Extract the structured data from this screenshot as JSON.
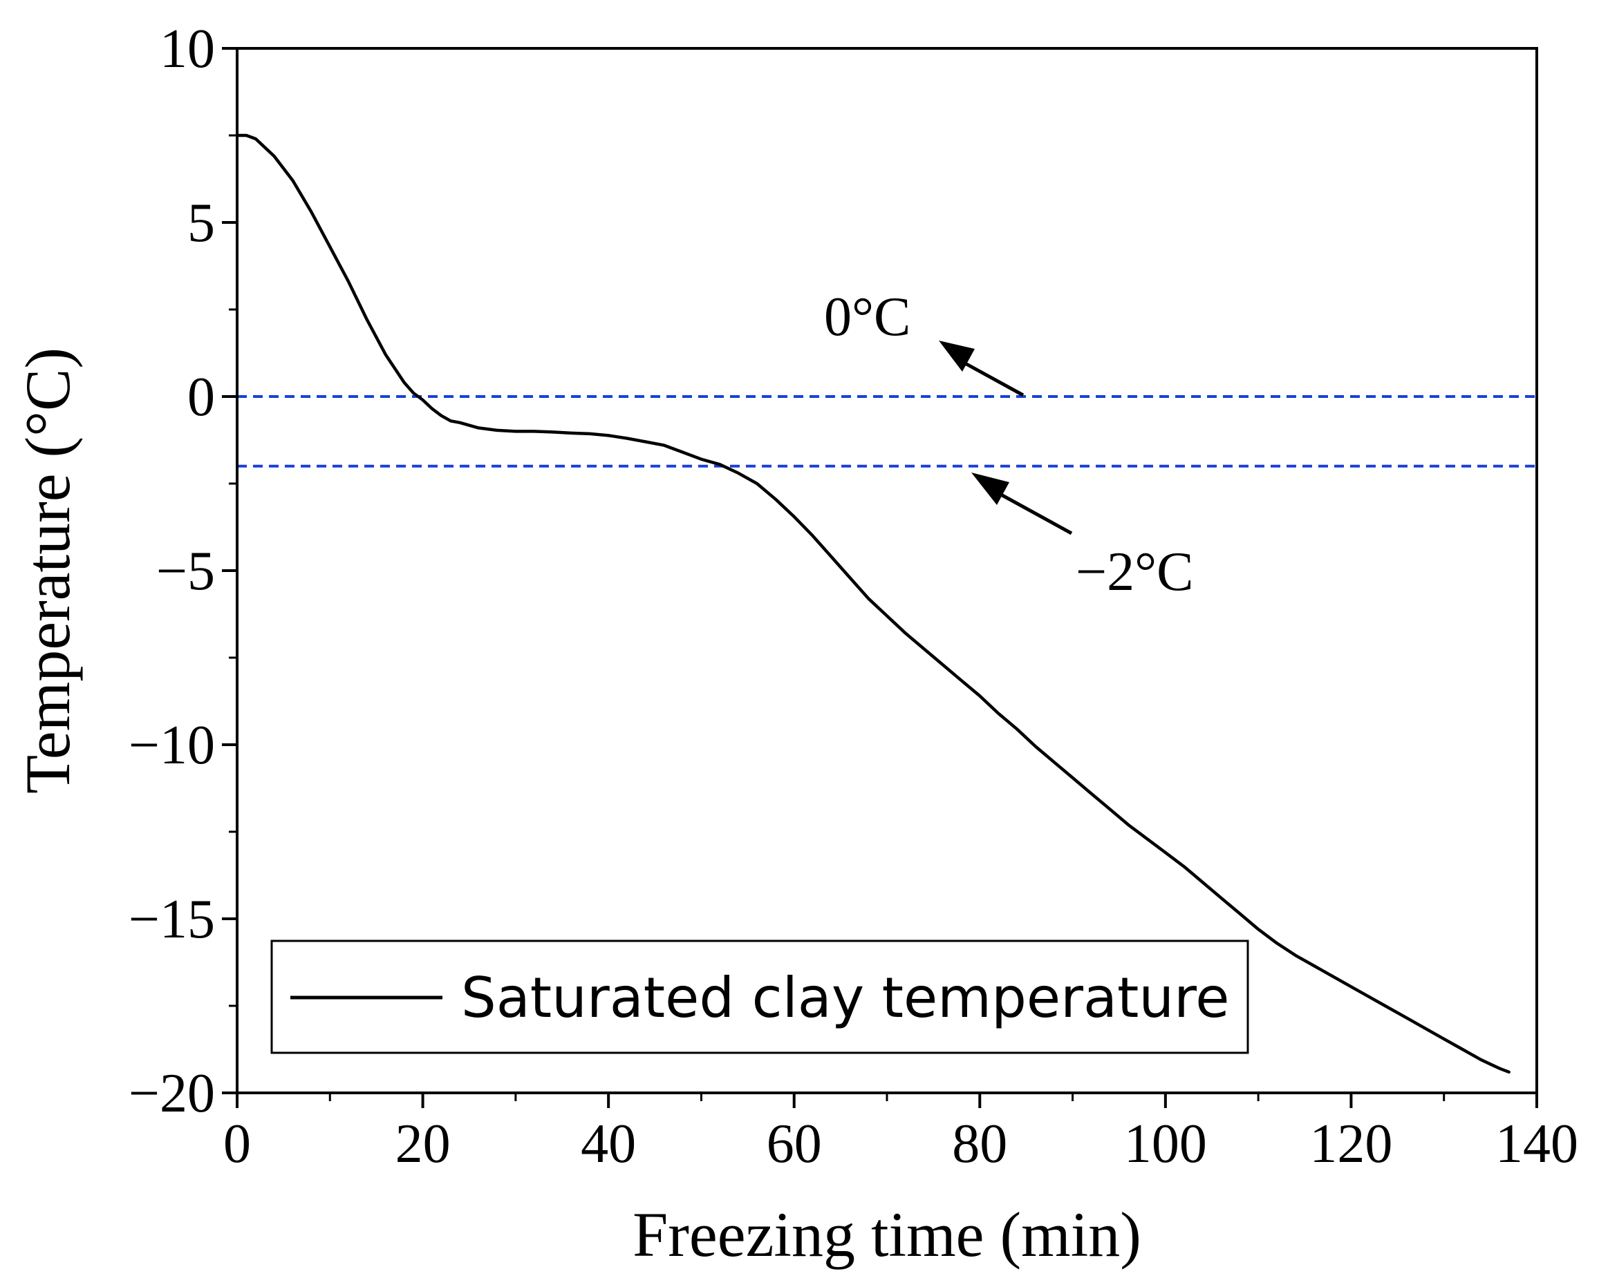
{
  "chart_data": {
    "type": "line",
    "title": "",
    "xlabel": "Freezing time (min)",
    "ylabel": "Temperature (°C)",
    "xlim": [
      0,
      140
    ],
    "ylim": [
      -20,
      10
    ],
    "xticks": [
      0,
      20,
      40,
      60,
      80,
      100,
      120,
      140
    ],
    "xtick_labels": [
      "0",
      "20",
      "40",
      "60",
      "80",
      "100",
      "120",
      "140"
    ],
    "yticks": [
      10,
      5,
      0,
      -5,
      -10,
      -15,
      -20
    ],
    "ytick_labels": [
      "10",
      "5",
      "0",
      "−5",
      "−10",
      "−15",
      "−20"
    ],
    "grid": false,
    "legend": {
      "position": "bottom-left",
      "entries": [
        "Saturated clay temperature"
      ]
    },
    "series": [
      {
        "name": "Saturated clay temperature",
        "color": "#000000",
        "x": [
          0,
          1,
          2,
          4,
          6,
          8,
          10,
          12,
          14,
          16,
          18,
          19,
          20,
          21,
          22,
          23,
          24,
          26,
          28,
          30,
          32,
          34,
          36,
          38,
          40,
          42,
          44,
          46,
          48,
          50,
          52,
          54,
          56,
          58,
          60,
          62,
          64,
          66,
          68,
          70,
          72,
          74,
          76,
          78,
          80,
          82,
          84,
          86,
          88,
          90,
          92,
          94,
          96,
          98,
          100,
          102,
          104,
          106,
          108,
          110,
          112,
          114,
          116,
          118,
          120,
          122,
          124,
          126,
          128,
          130,
          132,
          134,
          136,
          137
        ],
        "y": [
          7.5,
          7.5,
          7.4,
          6.9,
          6.2,
          5.3,
          4.3,
          3.3,
          2.2,
          1.2,
          0.4,
          0.1,
          -0.1,
          -0.35,
          -0.55,
          -0.7,
          -0.75,
          -0.9,
          -0.97,
          -1.0,
          -1.0,
          -1.02,
          -1.05,
          -1.07,
          -1.12,
          -1.2,
          -1.3,
          -1.4,
          -1.6,
          -1.8,
          -1.95,
          -2.2,
          -2.5,
          -2.95,
          -3.45,
          -4.0,
          -4.6,
          -5.2,
          -5.8,
          -6.3,
          -6.8,
          -7.25,
          -7.7,
          -8.15,
          -8.6,
          -9.1,
          -9.55,
          -10.05,
          -10.5,
          -10.95,
          -11.4,
          -11.85,
          -12.3,
          -12.7,
          -13.1,
          -13.5,
          -13.95,
          -14.4,
          -14.85,
          -15.3,
          -15.7,
          -16.05,
          -16.35,
          -16.65,
          -16.95,
          -17.25,
          -17.55,
          -17.85,
          -18.15,
          -18.45,
          -18.75,
          -19.05,
          -19.3,
          -19.4
        ]
      }
    ],
    "reference_lines": [
      {
        "y": 0,
        "style": "dashed",
        "color": "#1a3fd9"
      },
      {
        "y": -2,
        "style": "dashed",
        "color": "#1a3fd9"
      }
    ],
    "annotations": [
      {
        "text": "0°C",
        "target": [
          85,
          0
        ]
      },
      {
        "text": "−2°C",
        "target": [
          79,
          -2
        ]
      }
    ]
  }
}
